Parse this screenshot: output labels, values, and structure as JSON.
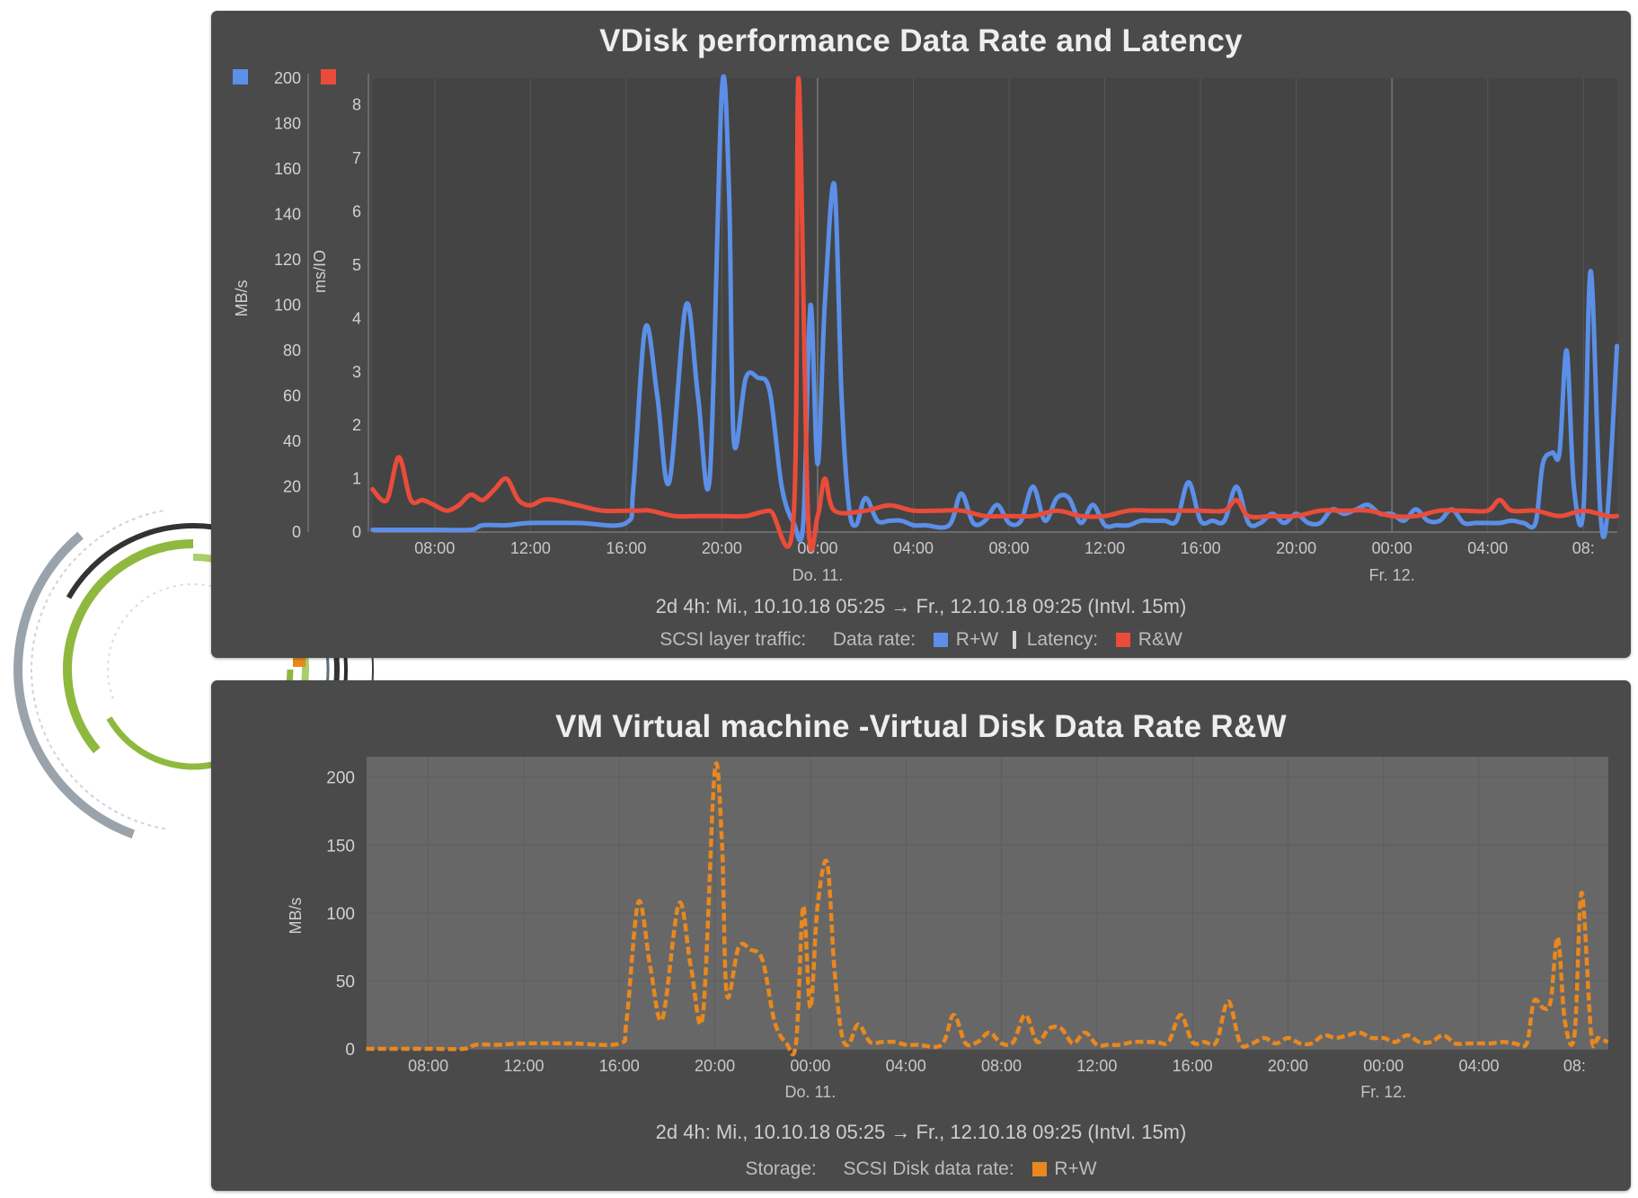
{
  "colors": {
    "data_rate": "#5b8fe8",
    "latency": "#ea4c3a",
    "storage": "#e8881e",
    "panel_bg": "#4a4a4a",
    "plot_bg_bottom": "#676767"
  },
  "panel_top": {
    "title": "VDisk performance Data Rate and Latency",
    "range": "2d 4h: Mi., 10.10.18  05:25   →   Fr., 12.10.18  09:25 (Intvl. 15m)",
    "legend": {
      "group": "SCSI layer traffic:",
      "data_rate_label": "Data rate:",
      "data_rate_item": "R+W",
      "latency_label": "Latency:",
      "latency_item": "R&W"
    }
  },
  "panel_bottom": {
    "title": "VM Virtual machine -Virtual Disk Data Rate R&W",
    "range": "2d 4h: Mi., 10.10.18  05:25   →   Fr., 12.10.18  09:25 (Intvl. 15m)",
    "legend": {
      "group": "Storage:",
      "label": "SCSI Disk data rate:",
      "item": "R+W"
    }
  },
  "chart_data": [
    {
      "type": "line",
      "title": "VDisk performance Data Rate and Latency",
      "x_ticks": [
        "08:00",
        "12:00",
        "16:00",
        "20:00",
        "00:00",
        "04:00",
        "08:00",
        "12:00",
        "16:00",
        "20:00",
        "00:00",
        "04:00",
        "08:"
      ],
      "x_day_labels": [
        "Do. 11.",
        "Fr. 12."
      ],
      "x_start_hour": 5.4167,
      "x_end_hour": 57.4167,
      "y_axes": [
        {
          "label": "MB/s",
          "ylim": [
            0,
            200
          ],
          "ticks": [
            "0",
            "20",
            "40",
            "60",
            "80",
            "100",
            "120",
            "140",
            "160",
            "180",
            "200"
          ]
        },
        {
          "label": "ms/IO",
          "ylim": [
            0,
            8.5
          ],
          "ticks": [
            "0",
            "1",
            "2",
            "3",
            "4",
            "5",
            "6",
            "7",
            "8"
          ]
        }
      ],
      "grid": true,
      "series": [
        {
          "name": "R+W",
          "axis": "MB/s",
          "color": "#5b8fe8",
          "points": [
            [
              5.4,
              1
            ],
            [
              8,
              1
            ],
            [
              9.5,
              1
            ],
            [
              10,
              3
            ],
            [
              11,
              3
            ],
            [
              12,
              4
            ],
            [
              14,
              4
            ],
            [
              16,
              4
            ],
            [
              16.3,
              20
            ],
            [
              16.8,
              90
            ],
            [
              17.3,
              60
            ],
            [
              17.8,
              22
            ],
            [
              18.5,
              100
            ],
            [
              19,
              60
            ],
            [
              19.5,
              25
            ],
            [
              20,
              195
            ],
            [
              20.3,
              150
            ],
            [
              20.5,
              40
            ],
            [
              21,
              68
            ],
            [
              21.5,
              68
            ],
            [
              22,
              62
            ],
            [
              22.5,
              20
            ],
            [
              23,
              4
            ],
            [
              23.4,
              4
            ],
            [
              23.7,
              100
            ],
            [
              24,
              30
            ],
            [
              24.3,
              100
            ],
            [
              24.7,
              153
            ],
            [
              25,
              60
            ],
            [
              25.3,
              12
            ],
            [
              25.6,
              3
            ],
            [
              26,
              15
            ],
            [
              26.5,
              5
            ],
            [
              27,
              5
            ],
            [
              27.5,
              5
            ],
            [
              28,
              3
            ],
            [
              28.5,
              3
            ],
            [
              29.5,
              3
            ],
            [
              30,
              17
            ],
            [
              30.5,
              4
            ],
            [
              31,
              5
            ],
            [
              31.5,
              12
            ],
            [
              32,
              4
            ],
            [
              32.5,
              5
            ],
            [
              33,
              20
            ],
            [
              33.5,
              5
            ],
            [
              34,
              15
            ],
            [
              34.5,
              15
            ],
            [
              35,
              4
            ],
            [
              35.5,
              12
            ],
            [
              36,
              3
            ],
            [
              36.5,
              3
            ],
            [
              37,
              3
            ],
            [
              37.5,
              5
            ],
            [
              38,
              5
            ],
            [
              38.5,
              5
            ],
            [
              39,
              5
            ],
            [
              39.5,
              22
            ],
            [
              40,
              5
            ],
            [
              40.5,
              5
            ],
            [
              41,
              5
            ],
            [
              41.5,
              20
            ],
            [
              42,
              4
            ],
            [
              42.5,
              4
            ],
            [
              43,
              8
            ],
            [
              43.5,
              4
            ],
            [
              44,
              8
            ],
            [
              44.5,
              4
            ],
            [
              45,
              4
            ],
            [
              45.5,
              10
            ],
            [
              46,
              8
            ],
            [
              46.5,
              10
            ],
            [
              47,
              12
            ],
            [
              47.5,
              8
            ],
            [
              48,
              8
            ],
            [
              48.5,
              5
            ],
            [
              49,
              10
            ],
            [
              49.5,
              5
            ],
            [
              50,
              5
            ],
            [
              50.5,
              10
            ],
            [
              51,
              4
            ],
            [
              51.5,
              4
            ],
            [
              52,
              4
            ],
            [
              52.5,
              4
            ],
            [
              53,
              5
            ],
            [
              53.5,
              4
            ],
            [
              54,
              4
            ],
            [
              54.3,
              30
            ],
            [
              54.7,
              35
            ],
            [
              55,
              35
            ],
            [
              55.3,
              80
            ],
            [
              55.6,
              20
            ],
            [
              56,
              10
            ],
            [
              56.3,
              115
            ],
            [
              56.7,
              10
            ],
            [
              57,
              8
            ],
            [
              57.4,
              82
            ]
          ]
        },
        {
          "name": "R&W",
          "axis": "ms/IO",
          "color": "#ea4c3a",
          "points": [
            [
              5.4,
              0.8
            ],
            [
              6,
              0.6
            ],
            [
              6.5,
              1.4
            ],
            [
              7,
              0.6
            ],
            [
              7.5,
              0.6
            ],
            [
              8,
              0.5
            ],
            [
              8.5,
              0.4
            ],
            [
              9,
              0.5
            ],
            [
              9.5,
              0.7
            ],
            [
              10,
              0.6
            ],
            [
              10.5,
              0.8
            ],
            [
              11,
              1.0
            ],
            [
              11.5,
              0.6
            ],
            [
              12,
              0.5
            ],
            [
              12.5,
              0.6
            ],
            [
              13,
              0.6
            ],
            [
              14,
              0.5
            ],
            [
              15,
              0.4
            ],
            [
              16,
              0.4
            ],
            [
              16.5,
              0.4
            ],
            [
              17,
              0.4
            ],
            [
              18,
              0.3
            ],
            [
              19,
              0.3
            ],
            [
              20,
              0.3
            ],
            [
              21,
              0.3
            ],
            [
              22,
              0.4
            ],
            [
              23,
              0.3
            ],
            [
              23.2,
              8.5
            ],
            [
              23.6,
              0.3
            ],
            [
              24,
              0.3
            ],
            [
              24.3,
              1.0
            ],
            [
              24.7,
              0.4
            ],
            [
              26,
              0.4
            ],
            [
              27,
              0.5
            ],
            [
              28,
              0.4
            ],
            [
              29,
              0.4
            ],
            [
              30,
              0.4
            ],
            [
              31,
              0.3
            ],
            [
              32,
              0.3
            ],
            [
              33,
              0.3
            ],
            [
              34,
              0.4
            ],
            [
              35,
              0.3
            ],
            [
              36,
              0.3
            ],
            [
              37,
              0.4
            ],
            [
              38,
              0.4
            ],
            [
              39,
              0.4
            ],
            [
              40,
              0.4
            ],
            [
              41,
              0.4
            ],
            [
              41.5,
              0.6
            ],
            [
              42,
              0.3
            ],
            [
              43,
              0.3
            ],
            [
              44,
              0.3
            ],
            [
              45,
              0.4
            ],
            [
              46,
              0.4
            ],
            [
              47,
              0.4
            ],
            [
              48,
              0.3
            ],
            [
              49,
              0.3
            ],
            [
              50,
              0.4
            ],
            [
              51,
              0.4
            ],
            [
              52,
              0.4
            ],
            [
              52.5,
              0.6
            ],
            [
              53,
              0.4
            ],
            [
              54,
              0.4
            ],
            [
              55,
              0.3
            ],
            [
              56,
              0.4
            ],
            [
              57,
              0.3
            ],
            [
              57.4,
              0.3
            ]
          ]
        }
      ]
    },
    {
      "type": "line",
      "title": "VM Virtual machine -Virtual Disk Data Rate R&W",
      "x_ticks": [
        "08:00",
        "12:00",
        "16:00",
        "20:00",
        "00:00",
        "04:00",
        "08:00",
        "12:00",
        "16:00",
        "20:00",
        "00:00",
        "04:00",
        "08:"
      ],
      "x_day_labels": [
        "Do. 11.",
        "Fr. 12."
      ],
      "x_start_hour": 5.4167,
      "x_end_hour": 57.4167,
      "ylabel": "MB/s",
      "ylim": [
        0,
        215
      ],
      "y_ticks": [
        "0",
        "50",
        "100",
        "150",
        "200"
      ],
      "grid": true,
      "series": [
        {
          "name": "R+W",
          "color": "#e8881e",
          "points": [
            [
              5.4,
              0
            ],
            [
              8,
              0
            ],
            [
              9.5,
              0
            ],
            [
              10,
              3
            ],
            [
              11,
              3
            ],
            [
              12,
              4
            ],
            [
              14,
              4
            ],
            [
              16,
              4
            ],
            [
              16.3,
              20
            ],
            [
              16.8,
              108
            ],
            [
              17.3,
              60
            ],
            [
              17.8,
              22
            ],
            [
              18.5,
              107
            ],
            [
              19,
              60
            ],
            [
              19.5,
              25
            ],
            [
              20,
              205
            ],
            [
              20.3,
              150
            ],
            [
              20.5,
              40
            ],
            [
              21,
              75
            ],
            [
              21.5,
              73
            ],
            [
              22,
              65
            ],
            [
              22.5,
              20
            ],
            [
              23,
              4
            ],
            [
              23.4,
              4
            ],
            [
              23.7,
              105
            ],
            [
              24,
              30
            ],
            [
              24.3,
              105
            ],
            [
              24.7,
              137
            ],
            [
              25,
              60
            ],
            [
              25.3,
              12
            ],
            [
              25.6,
              3
            ],
            [
              26,
              18
            ],
            [
              26.5,
              5
            ],
            [
              27,
              5
            ],
            [
              27.5,
              5
            ],
            [
              28,
              3
            ],
            [
              28.5,
              3
            ],
            [
              29.5,
              3
            ],
            [
              30,
              25
            ],
            [
              30.5,
              4
            ],
            [
              31,
              5
            ],
            [
              31.5,
              12
            ],
            [
              32,
              4
            ],
            [
              32.5,
              5
            ],
            [
              33,
              25
            ],
            [
              33.5,
              5
            ],
            [
              34,
              15
            ],
            [
              34.5,
              15
            ],
            [
              35,
              4
            ],
            [
              35.5,
              12
            ],
            [
              36,
              3
            ],
            [
              36.5,
              3
            ],
            [
              37,
              3
            ],
            [
              37.5,
              5
            ],
            [
              38,
              5
            ],
            [
              38.5,
              5
            ],
            [
              39,
              5
            ],
            [
              39.5,
              25
            ],
            [
              40,
              5
            ],
            [
              40.5,
              5
            ],
            [
              41,
              5
            ],
            [
              41.5,
              35
            ],
            [
              42,
              4
            ],
            [
              42.5,
              4
            ],
            [
              43,
              8
            ],
            [
              43.5,
              4
            ],
            [
              44,
              8
            ],
            [
              44.5,
              4
            ],
            [
              45,
              4
            ],
            [
              45.5,
              10
            ],
            [
              46,
              8
            ],
            [
              46.5,
              10
            ],
            [
              47,
              12
            ],
            [
              47.5,
              8
            ],
            [
              48,
              8
            ],
            [
              48.5,
              5
            ],
            [
              49,
              10
            ],
            [
              49.5,
              5
            ],
            [
              50,
              5
            ],
            [
              50.5,
              10
            ],
            [
              51,
              4
            ],
            [
              51.5,
              4
            ],
            [
              52,
              4
            ],
            [
              52.5,
              4
            ],
            [
              53,
              5
            ],
            [
              53.5,
              4
            ],
            [
              54,
              4
            ],
            [
              54.3,
              35
            ],
            [
              54.7,
              30
            ],
            [
              55,
              35
            ],
            [
              55.3,
              82
            ],
            [
              55.6,
              20
            ],
            [
              56,
              10
            ],
            [
              56.3,
              115
            ],
            [
              56.7,
              10
            ],
            [
              57,
              8
            ],
            [
              57.4,
              5
            ]
          ]
        }
      ]
    }
  ]
}
